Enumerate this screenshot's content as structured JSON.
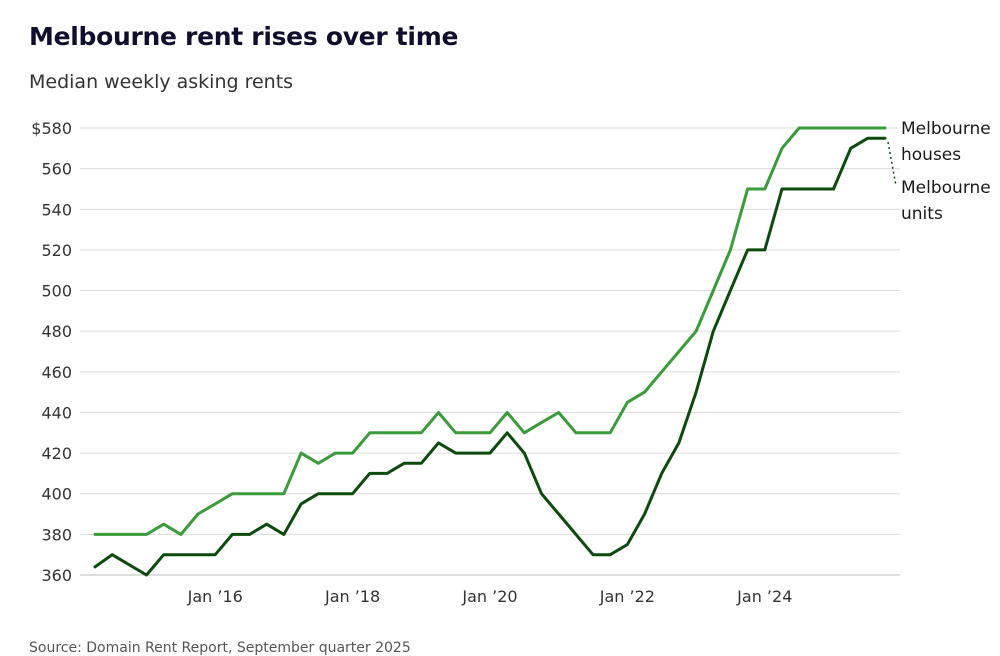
{
  "title": "Melbourne rent rises over time",
  "subtitle": "Median weekly asking rents",
  "source": "Source: Domain Rent Report, September quarter 2025",
  "colors": {
    "houses": "#3a9b3a",
    "units": "#0d4a0d",
    "grid": "#dcdcdc",
    "axis": "#bdbdbd"
  },
  "chart_data": {
    "type": "line",
    "title": "Melbourne rent rises over time",
    "subtitle": "Median weekly asking rents",
    "xlabel": "",
    "ylabel": "",
    "ylim": [
      360,
      580
    ],
    "y_ticks": [
      "$580",
      "560",
      "540",
      "520",
      "500",
      "480",
      "460",
      "440",
      "420",
      "400",
      "380",
      "360"
    ],
    "y_tick_values": [
      580,
      560,
      540,
      520,
      500,
      480,
      460,
      440,
      420,
      400,
      380,
      360
    ],
    "x_ticks": [
      "Jan ’16",
      "Jan ’18",
      "Jan ’20",
      "Jan ’22",
      "Jan ’24"
    ],
    "x_tick_values": [
      2016.0,
      2018.0,
      2020.0,
      2022.0,
      2024.0
    ],
    "xlim": [
      2014.25,
      2025.75
    ],
    "grid": true,
    "legend": "right end labels",
    "series": [
      {
        "name": "Melbourne houses",
        "label_lines": [
          "Melbourne",
          "houses"
        ],
        "color": "#3a9b3a",
        "x": [
          2014.25,
          2014.5,
          2014.75,
          2015.0,
          2015.25,
          2015.5,
          2015.75,
          2016.0,
          2016.25,
          2016.5,
          2016.75,
          2017.0,
          2017.25,
          2017.5,
          2017.75,
          2018.0,
          2018.25,
          2018.5,
          2018.75,
          2019.0,
          2019.25,
          2019.5,
          2019.75,
          2020.0,
          2020.25,
          2020.5,
          2020.75,
          2021.0,
          2021.25,
          2021.5,
          2021.75,
          2022.0,
          2022.25,
          2022.5,
          2022.75,
          2023.0,
          2023.25,
          2023.5,
          2023.75,
          2024.0,
          2024.25,
          2024.5,
          2024.75,
          2025.0,
          2025.25,
          2025.5,
          2025.75
        ],
        "values": [
          380,
          380,
          380,
          380,
          385,
          380,
          390,
          395,
          400,
          400,
          400,
          400,
          420,
          415,
          420,
          420,
          430,
          430,
          430,
          430,
          440,
          430,
          430,
          430,
          440,
          430,
          435,
          440,
          430,
          430,
          430,
          445,
          450,
          460,
          470,
          480,
          500,
          520,
          550,
          550,
          570,
          580,
          580,
          580,
          580,
          580,
          580
        ]
      },
      {
        "name": "Melbourne units",
        "label_lines": [
          "Melbourne",
          "units"
        ],
        "color": "#0d4a0d",
        "x": [
          2014.25,
          2014.5,
          2014.75,
          2015.0,
          2015.25,
          2015.5,
          2015.75,
          2016.0,
          2016.25,
          2016.5,
          2016.75,
          2017.0,
          2017.25,
          2017.5,
          2017.75,
          2018.0,
          2018.25,
          2018.5,
          2018.75,
          2019.0,
          2019.25,
          2019.5,
          2019.75,
          2020.0,
          2020.25,
          2020.5,
          2020.75,
          2021.0,
          2021.25,
          2021.5,
          2021.75,
          2022.0,
          2022.25,
          2022.5,
          2022.75,
          2023.0,
          2023.25,
          2023.5,
          2023.75,
          2024.0,
          2024.25,
          2024.5,
          2024.75,
          2025.0,
          2025.25,
          2025.5,
          2025.75
        ],
        "values": [
          364,
          370,
          365,
          360,
          370,
          370,
          370,
          370,
          380,
          380,
          385,
          380,
          395,
          400,
          400,
          400,
          410,
          410,
          415,
          415,
          425,
          420,
          420,
          420,
          430,
          420,
          400,
          390,
          380,
          370,
          370,
          375,
          390,
          410,
          425,
          450,
          480,
          500,
          520,
          520,
          550,
          550,
          550,
          550,
          570,
          575,
          575
        ]
      }
    ]
  }
}
